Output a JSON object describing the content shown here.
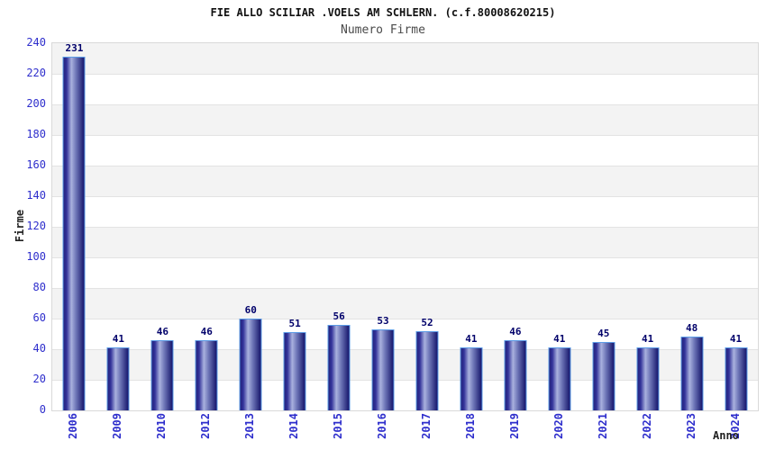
{
  "chart_data": {
    "type": "bar",
    "title": "FIE ALLO SCILIAR .VOELS AM SCHLERN. (c.f.80008620215)",
    "subtitle": "Numero Firme",
    "xlabel": "Anno",
    "ylabel": "Firme",
    "categories": [
      "2006",
      "2009",
      "2010",
      "2012",
      "2013",
      "2014",
      "2015",
      "2016",
      "2017",
      "2018",
      "2019",
      "2020",
      "2021",
      "2022",
      "2023",
      "2024"
    ],
    "values": [
      231,
      41,
      46,
      46,
      60,
      51,
      56,
      53,
      52,
      41,
      46,
      41,
      45,
      41,
      48,
      41
    ],
    "ylim": [
      0,
      240
    ],
    "ytick_step": 20,
    "grid": true,
    "legend": "none",
    "styles": {
      "tick_label_color": "#2e2ecc",
      "value_label_color": "#00006a",
      "axis_title_color": "#222222",
      "title_color": "#111111",
      "subtitle_color": "#4a4a4a",
      "bar_border_color": "#5b9be6",
      "bar_edge_dark": "#23237d",
      "bar_mid_dark": "#33339a",
      "bar_highlight": "#a9b1de",
      "bar_shade": "#6f77b8",
      "bar_edge_darker": "#15156b",
      "band_color_gray": "#f3f3f3",
      "band_color_white": "#ffffff",
      "gridline_color": "#e3e3e3",
      "plot_border_color": "#d9d9d9"
    }
  }
}
